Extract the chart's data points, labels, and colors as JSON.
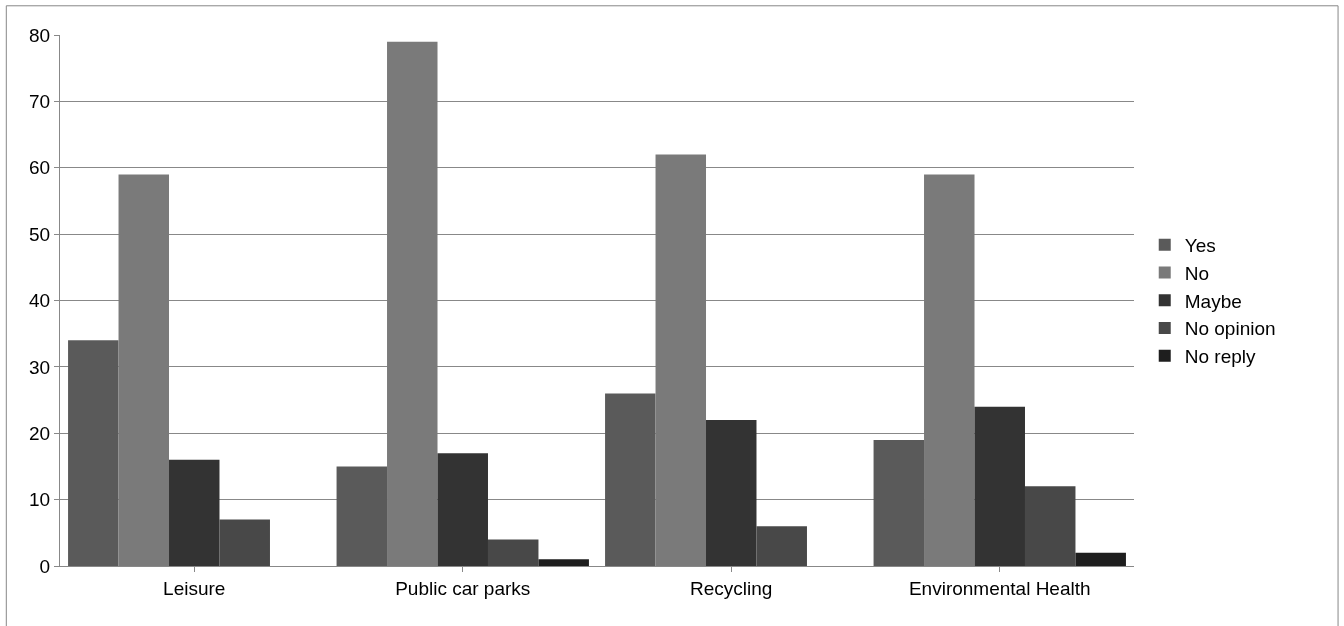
{
  "chart_data": {
    "type": "bar",
    "categories": [
      "Leisure",
      "Public car parks",
      "Recycling",
      "Environmental Health"
    ],
    "series": [
      {
        "name": "Yes",
        "color": "#5a5a5a",
        "values": [
          34,
          15,
          26,
          19
        ]
      },
      {
        "name": "No",
        "color": "#7a7a7a",
        "values": [
          59,
          79,
          62,
          59
        ]
      },
      {
        "name": "Maybe",
        "color": "#333333",
        "values": [
          16,
          17,
          22,
          24
        ]
      },
      {
        "name": "No opinion",
        "color": "#484848",
        "values": [
          7,
          4,
          6,
          12
        ]
      },
      {
        "name": "No reply",
        "color": "#1e1e1e",
        "values": [
          0,
          1,
          0,
          2
        ]
      }
    ],
    "ylim": [
      0,
      80
    ],
    "yticks": [
      0,
      10,
      20,
      30,
      40,
      50,
      60,
      70,
      80
    ],
    "grid": "y",
    "legend": "right"
  }
}
